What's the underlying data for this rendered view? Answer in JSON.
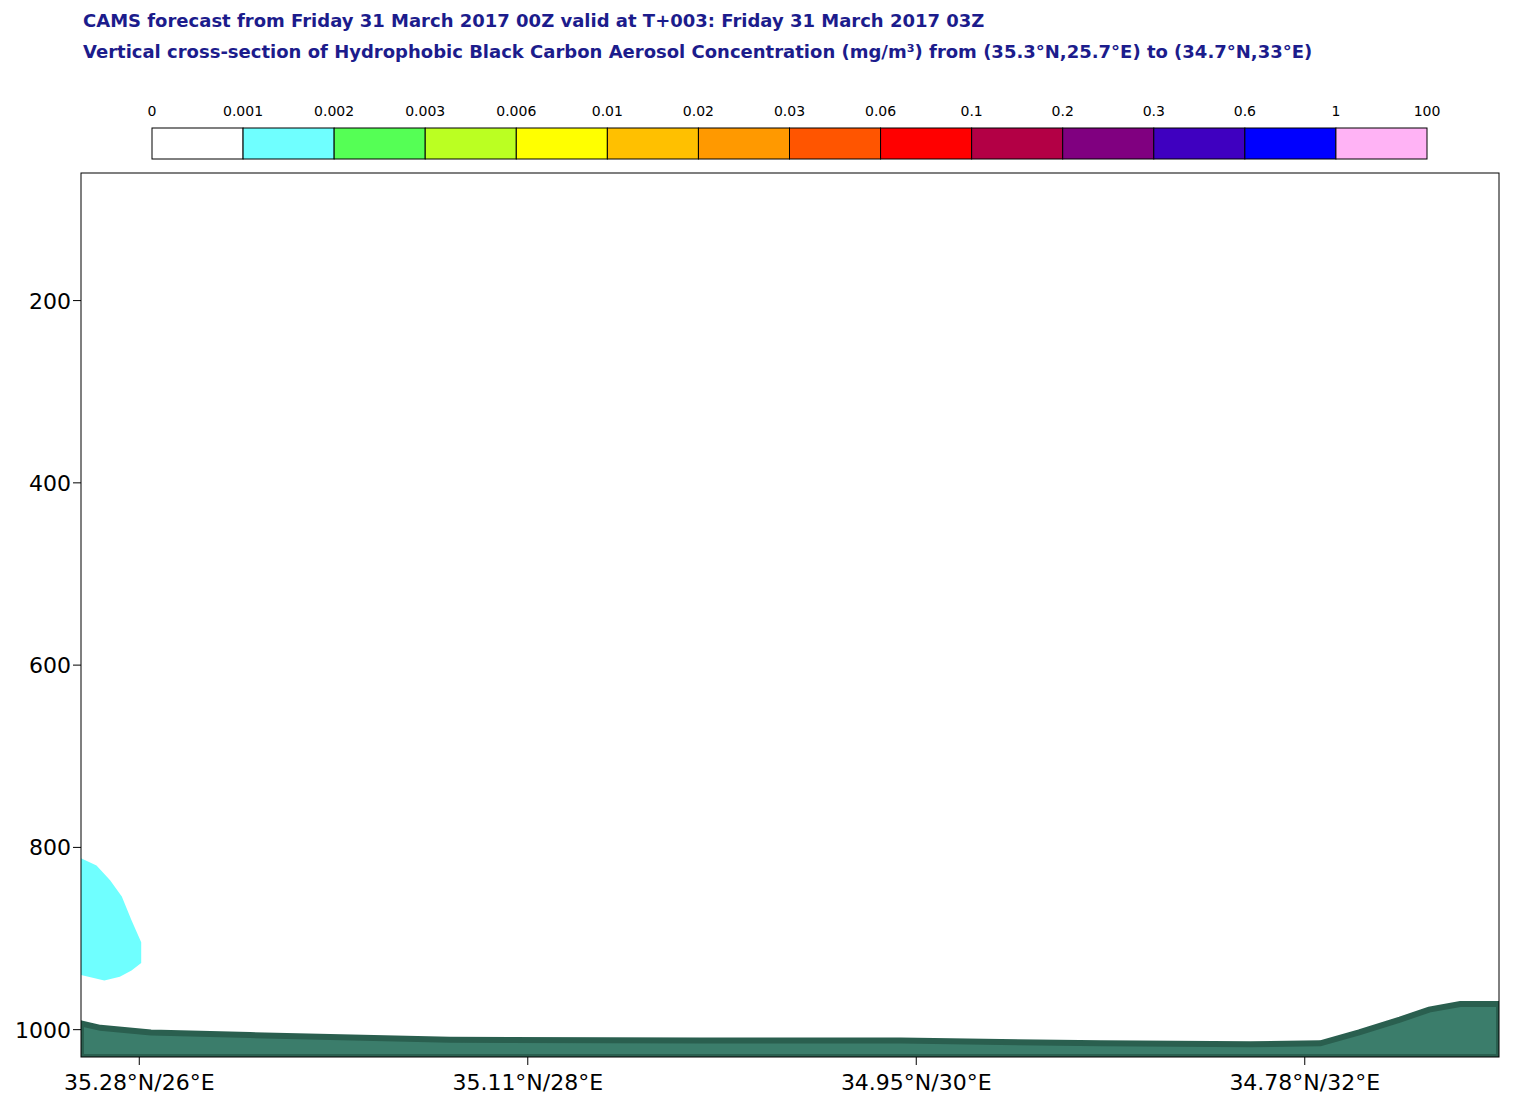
{
  "chart_data": {
    "type": "contour",
    "title": "CAMS forecast from Friday 31 March 2017 00Z valid at T+003: Friday 31 March 2017 03Z",
    "subtitle": "Vertical cross-section of Hydrophobic Black Carbon Aerosol Concentration (mg/m³) from (35.3°N,25.7°E) to (34.7°N,33°E)",
    "xlim": [
      25.7,
      33
    ],
    "xticks": [
      {
        "value": 26,
        "label": "35.28°N/26°E"
      },
      {
        "value": 28,
        "label": "35.11°N/28°E"
      },
      {
        "value": 30,
        "label": "34.95°N/30°E"
      },
      {
        "value": 32,
        "label": "34.78°N/32°E"
      }
    ],
    "ylim": [
      1030,
      60
    ],
    "yticks": [
      200,
      400,
      600,
      800,
      1000
    ],
    "grid": false,
    "colorbar": {
      "levels": [
        0,
        0.001,
        0.002,
        0.003,
        0.006,
        0.01,
        0.02,
        0.03,
        0.06,
        0.1,
        0.2,
        0.3,
        0.6,
        1,
        100
      ],
      "colors": [
        "#ffffff",
        "#6fffff",
        "#55ff55",
        "#bbff22",
        "#ffff00",
        "#ffc000",
        "#ff9900",
        "#ff5500",
        "#ff0000",
        "#b30045",
        "#800080",
        "#3f00c0",
        "#0000ff",
        "#ffb3f5"
      ]
    },
    "regions": [
      {
        "color": "#6fffff",
        "x": [
          25.7,
          25.78,
          25.85,
          25.91,
          25.96,
          26.01,
          26.01,
          25.96,
          25.9,
          25.82,
          25.7
        ],
        "values": [
          812,
          820,
          836,
          854,
          880,
          904,
          927,
          935,
          942,
          946,
          940
        ]
      }
    ],
    "surface": {
      "color": "#3b7d6b",
      "x": [
        25.7,
        25.8,
        26.06,
        26.57,
        27.6,
        28.89,
        29.92,
        30.95,
        31.72,
        32.08,
        32.28,
        32.49,
        32.64,
        32.8,
        33.0
      ],
      "values": [
        993,
        998,
        1003,
        1006,
        1011,
        1012,
        1012,
        1015,
        1016,
        1015,
        1003,
        989,
        978,
        972,
        972
      ]
    }
  }
}
